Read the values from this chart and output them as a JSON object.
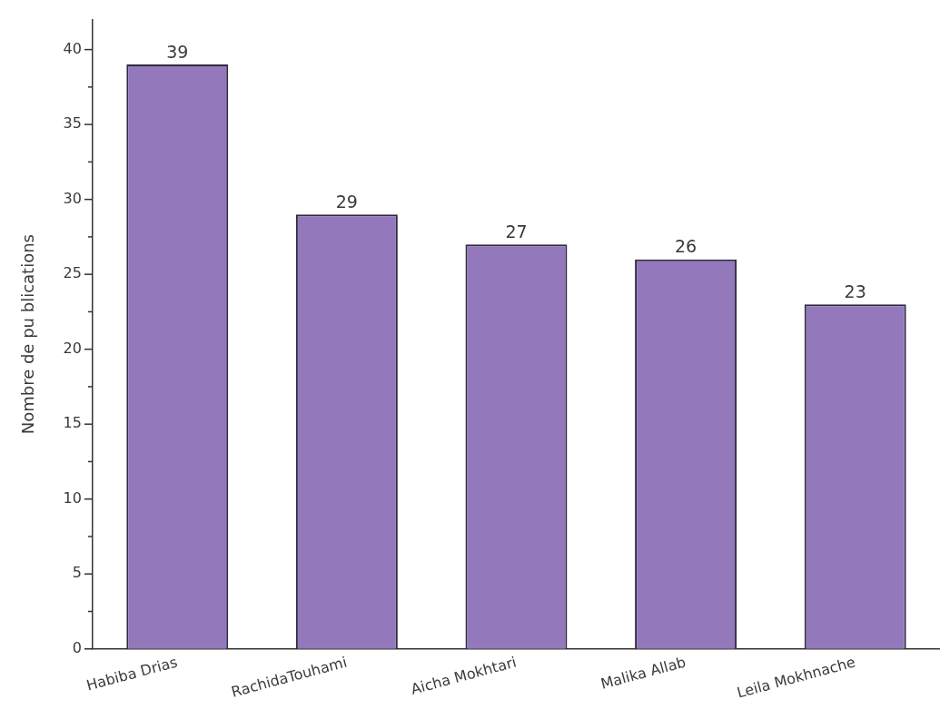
{
  "chart_data": {
    "type": "bar",
    "ylabel": "Nombre de pu blications",
    "categories": [
      "Habiba Drias",
      "RachidaTouhami",
      "Aicha Mokhtari",
      "Malika Allab",
      "Leila Mokhnache"
    ],
    "values": [
      39,
      29,
      27,
      26,
      23
    ],
    "color": "#9379bb",
    "ylim": [
      0,
      42
    ],
    "yticks": [
      0,
      {
        "value": 2.5,
        "label": null
      },
      5,
      {
        "value": 7.5,
        "label": null
      },
      10,
      {
        "value": 12.5,
        "label": null
      },
      15,
      {
        "value": 17.5,
        "label": null
      },
      20,
      {
        "value": 22.5,
        "label": null
      },
      25,
      {
        "value": 27.5,
        "label": null
      },
      30,
      {
        "value": 32.5,
        "label": null
      },
      35,
      {
        "value": 37.5,
        "label": null
      },
      40
    ],
    "grid": false,
    "data_labels": true
  }
}
